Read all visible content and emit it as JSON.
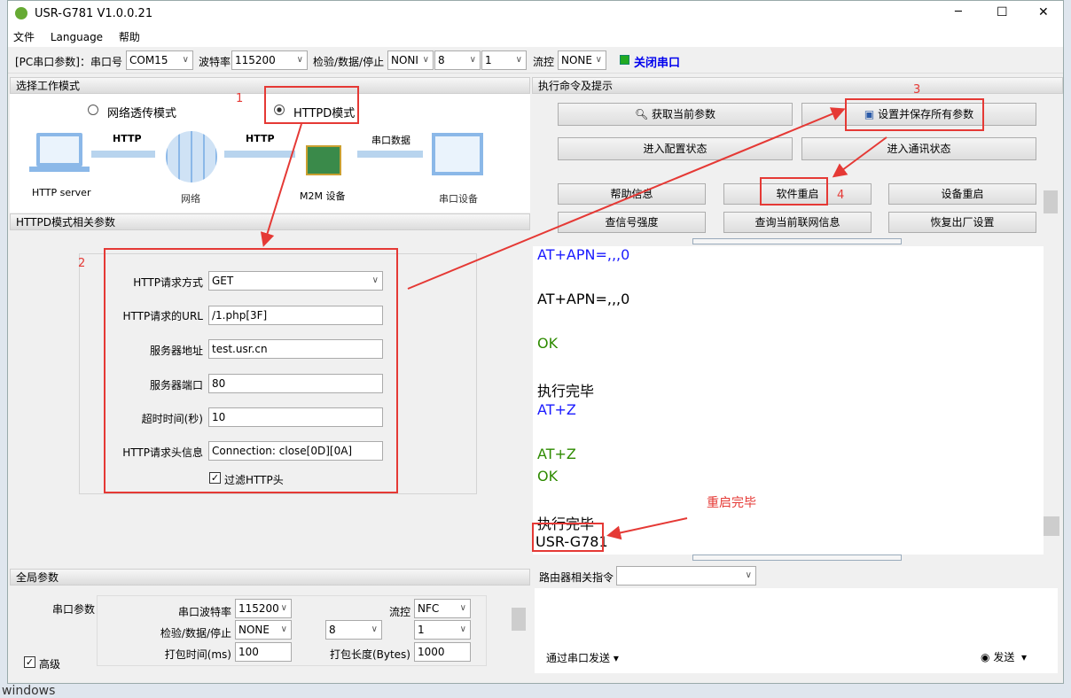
{
  "window": {
    "title": "USR-G781 V1.0.0.21",
    "minimize": "─",
    "maximize": "☐",
    "close": "✕"
  },
  "menu": [
    "文件",
    "Language",
    "帮助"
  ],
  "toolbar": {
    "pc_label": "[PC串口参数]：串口号",
    "port": "COM15",
    "baud_label": "波特率",
    "baud": "115200",
    "parity_label": "检验/数据/停止",
    "parity": "NONI",
    "data_bits": "8",
    "stop_bits": "1",
    "flow_label": "流控",
    "flow": "NONE",
    "close_port": "关闭串口",
    "status_color": "#22aa22"
  },
  "mode_panel": {
    "header": "选择工作模式",
    "modes": [
      {
        "label": "网络透传模式",
        "selected": false
      },
      {
        "label": "HTTPD模式",
        "selected": true
      }
    ],
    "diagram": {
      "server": "HTTP server",
      "link1": "HTTP",
      "network": "网络",
      "link2": "HTTP",
      "device": "M2M 设备",
      "link3": "串口数据",
      "serial_device": "串口设备"
    }
  },
  "httpd_panel": {
    "header": "HTTPD模式相关参数",
    "fields": [
      {
        "label": "HTTP请求方式",
        "value": "GET",
        "type": "select"
      },
      {
        "label": "HTTP请求的URL",
        "value": "/1.php[3F]"
      },
      {
        "label": "服务器地址",
        "value": "test.usr.cn"
      },
      {
        "label": "服务器端口",
        "value": "80"
      },
      {
        "label": "超时时间(秒)",
        "value": "10"
      },
      {
        "label": "HTTP请求头信息",
        "value": "Connection: close[0D][0A]"
      }
    ],
    "filter_label": "过滤HTTP头",
    "filter_checked": true
  },
  "global_panel": {
    "header": "全局参数",
    "serial_label": "串口参数",
    "baud_label": "串口波特率",
    "baud": "115200",
    "flow_label": "流控",
    "flow": "NFC",
    "parity_label": "检验/数据/停止",
    "parity": "NONE",
    "data_bits": "8",
    "stop_bits": "1",
    "pack_time_label": "打包时间(ms)",
    "pack_time": "100",
    "pack_len_label": "打包长度(Bytes)",
    "pack_len": "1000",
    "advanced_label": "高级",
    "advanced_checked": true
  },
  "cmd_panel": {
    "header": "执行命令及提示",
    "buttons": {
      "get_params": "获取当前参数",
      "save_all": "设置并保存所有参数",
      "enter_config": "进入配置状态",
      "enter_comm": "进入通讯状态",
      "help": "帮助信息",
      "soft_restart": "软件重启",
      "device_restart": "设备重启",
      "signal": "查信号强度",
      "network_info": "查询当前联网信息",
      "factory_reset": "恢复出厂设置"
    }
  },
  "log": [
    {
      "text": "AT+APN=,,,0",
      "color": "#1a1aff"
    },
    {
      "text": "AT+APN=,,,0",
      "color": "#000000"
    },
    {
      "text": "OK",
      "color": "#2e8b00"
    },
    {
      "text": "执行完毕",
      "color": "#000000"
    },
    {
      "text": "AT+Z",
      "color": "#1a1aff"
    },
    {
      "text": "AT+Z",
      "color": "#2e8b00"
    },
    {
      "text": "OK",
      "color": "#2e8b00"
    },
    {
      "text": "执行完毕",
      "color": "#000000"
    },
    {
      "text": "USR-G781",
      "color": "#000000"
    }
  ],
  "router": {
    "label": "路由器相关指令",
    "value": ""
  },
  "send": {
    "via": "通过串口发送",
    "send": "发送"
  },
  "annotations": {
    "n1": "1",
    "n2": "2",
    "n3": "3",
    "n4": "4",
    "restart_done": "重启完毕",
    "color": "#e53935"
  },
  "desktop_text": "windows"
}
